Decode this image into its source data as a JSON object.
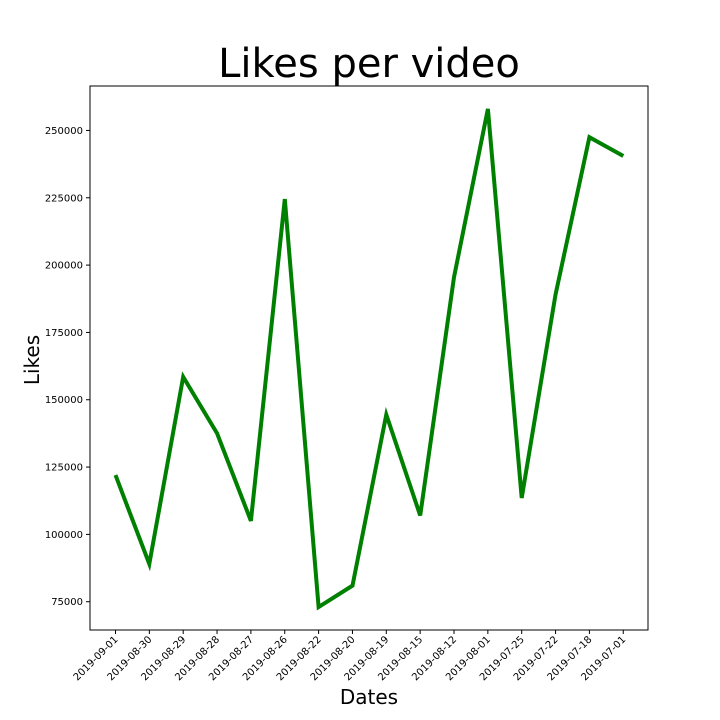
{
  "chart_data": {
    "type": "line",
    "title": "Likes per video",
    "xlabel": "Dates",
    "ylabel": "Likes",
    "categories": [
      "2019-09-01",
      "2019-08-30",
      "2019-08-29",
      "2019-08-28",
      "2019-08-27",
      "2019-08-26",
      "2019-08-22",
      "2019-08-20",
      "2019-08-19",
      "2019-08-15",
      "2019-08-12",
      "2019-08-01",
      "2019-07-25",
      "2019-07-22",
      "2019-07-18",
      "2019-07-01"
    ],
    "series": [
      {
        "values": [
          122000,
          89000,
          158500,
          137500,
          105000,
          224500,
          73000,
          81000,
          144500,
          107000,
          195500,
          258000,
          113500,
          189000,
          247500,
          240500
        ],
        "color": "#008000"
      }
    ],
    "ylim": [
      64500,
      266500
    ],
    "yticks": [
      75000,
      100000,
      125000,
      150000,
      175000,
      200000,
      225000,
      250000
    ],
    "grid": false,
    "legend": "none"
  }
}
